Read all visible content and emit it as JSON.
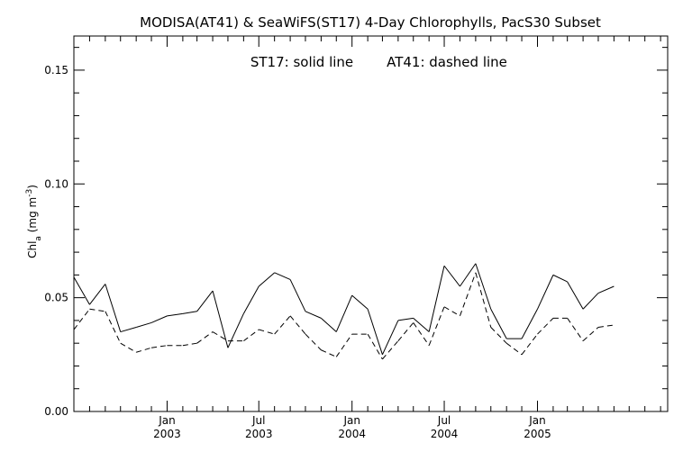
{
  "chart_data": {
    "type": "line",
    "title": "MODISA(AT41) & SeaWiFS(ST17) 4-Day Chlorophylls, PacS30 Subset",
    "legend_text": {
      "st17": "ST17: solid line",
      "at41": "AT41: dashed line"
    },
    "ylabel": "Chl_a (mg m^-3)",
    "ylabel_parts": {
      "main": "Chl",
      "sub": "a",
      "units_open": " (mg m",
      "sup": "-3",
      "units_close": ")"
    },
    "ylim": [
      0.0,
      0.165
    ],
    "yticks": [
      {
        "value": 0.0,
        "label": "0.00"
      },
      {
        "value": 0.05,
        "label": "0.05"
      },
      {
        "value": 0.1,
        "label": "0.10"
      },
      {
        "value": 0.15,
        "label": "0.15"
      }
    ],
    "xlim": [
      "2002-07-01",
      "2005-09-15"
    ],
    "xticks": [
      {
        "date": "2003-01-01",
        "month": "Jan",
        "year": "2003"
      },
      {
        "date": "2003-07-01",
        "month": "Jul",
        "year": "2003"
      },
      {
        "date": "2004-01-01",
        "month": "Jan",
        "year": "2004"
      },
      {
        "date": "2004-07-01",
        "month": "Jul",
        "year": "2004"
      },
      {
        "date": "2005-01-01",
        "month": "Jan",
        "year": "2005"
      }
    ],
    "grid": false,
    "series": [
      {
        "name": "ST17",
        "style": "solid",
        "color": "#000000",
        "points": [
          [
            "2002-07-01",
            0.059
          ],
          [
            "2002-08-01",
            0.047
          ],
          [
            "2002-09-01",
            0.056
          ],
          [
            "2002-10-01",
            0.035
          ],
          [
            "2002-11-01",
            0.037
          ],
          [
            "2002-12-01",
            0.039
          ],
          [
            "2003-01-01",
            0.042
          ],
          [
            "2003-02-01",
            0.043
          ],
          [
            "2003-03-01",
            0.044
          ],
          [
            "2003-04-01",
            0.053
          ],
          [
            "2003-05-01",
            0.028
          ],
          [
            "2003-06-01",
            0.043
          ],
          [
            "2003-07-01",
            0.055
          ],
          [
            "2003-08-01",
            0.061
          ],
          [
            "2003-09-01",
            0.058
          ],
          [
            "2003-10-01",
            0.044
          ],
          [
            "2003-11-01",
            0.041
          ],
          [
            "2003-12-01",
            0.035
          ],
          [
            "2004-01-01",
            0.051
          ],
          [
            "2004-02-01",
            0.045
          ],
          [
            "2004-03-01",
            0.025
          ],
          [
            "2004-04-01",
            0.04
          ],
          [
            "2004-05-01",
            0.041
          ],
          [
            "2004-06-01",
            0.035
          ],
          [
            "2004-07-01",
            0.064
          ],
          [
            "2004-08-01",
            0.055
          ],
          [
            "2004-09-01",
            0.065
          ],
          [
            "2004-10-01",
            0.045
          ],
          [
            "2004-11-01",
            0.032
          ],
          [
            "2004-12-01",
            0.032
          ],
          [
            "2005-01-01",
            0.045
          ],
          [
            "2005-02-01",
            0.06
          ],
          [
            "2005-03-01",
            0.057
          ],
          [
            "2005-04-01",
            0.045
          ],
          [
            "2005-05-01",
            0.052
          ],
          [
            "2005-06-01",
            0.055
          ]
        ]
      },
      {
        "name": "AT41",
        "style": "dashed",
        "color": "#000000",
        "points": [
          [
            "2002-07-01",
            0.036
          ],
          [
            "2002-08-01",
            0.045
          ],
          [
            "2002-09-01",
            0.044
          ],
          [
            "2002-10-01",
            0.03
          ],
          [
            "2002-11-01",
            0.026
          ],
          [
            "2002-12-01",
            0.028
          ],
          [
            "2003-01-01",
            0.029
          ],
          [
            "2003-02-01",
            0.029
          ],
          [
            "2003-03-01",
            0.03
          ],
          [
            "2003-04-01",
            0.035
          ],
          [
            "2003-05-01",
            0.031
          ],
          [
            "2003-06-01",
            0.031
          ],
          [
            "2003-07-01",
            0.036
          ],
          [
            "2003-08-01",
            0.034
          ],
          [
            "2003-09-01",
            0.042
          ],
          [
            "2003-10-01",
            0.034
          ],
          [
            "2003-11-01",
            0.027
          ],
          [
            "2003-12-01",
            0.024
          ],
          [
            "2004-01-01",
            0.034
          ],
          [
            "2004-02-01",
            0.034
          ],
          [
            "2004-03-01",
            0.023
          ],
          [
            "2004-04-01",
            0.031
          ],
          [
            "2004-05-01",
            0.039
          ],
          [
            "2004-06-01",
            0.029
          ],
          [
            "2004-07-01",
            0.046
          ],
          [
            "2004-08-01",
            0.042
          ],
          [
            "2004-09-01",
            0.061
          ],
          [
            "2004-10-01",
            0.037
          ],
          [
            "2004-11-01",
            0.03
          ],
          [
            "2004-12-01",
            0.025
          ],
          [
            "2005-01-01",
            0.034
          ],
          [
            "2005-02-01",
            0.041
          ],
          [
            "2005-03-01",
            0.041
          ],
          [
            "2005-04-01",
            0.031
          ],
          [
            "2005-05-01",
            0.037
          ],
          [
            "2005-06-01",
            0.038
          ]
        ]
      }
    ]
  }
}
